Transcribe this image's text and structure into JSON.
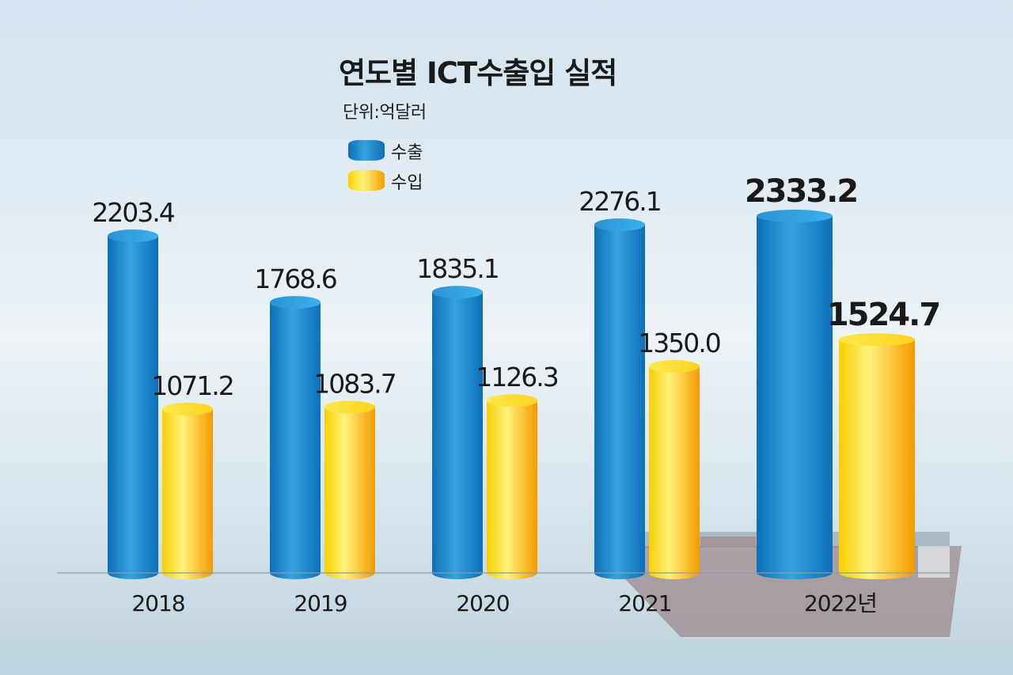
{
  "chart_data": {
    "type": "bar",
    "title": "연도별 ICT수출입 실적",
    "unit_label": "단위:억달러",
    "categories": [
      "2018",
      "2019",
      "2020",
      "2021",
      "2022년"
    ],
    "series": [
      {
        "name": "수출",
        "values": [
          2203.4,
          1768.6,
          1835.1,
          2276.1,
          2333.2
        ]
      },
      {
        "name": "수입",
        "values": [
          1071.2,
          1083.7,
          1126.3,
          1350.0,
          1524.7
        ]
      }
    ],
    "value_labels": {
      "export": [
        "2203.4",
        "1768.6",
        "1835.1",
        "2276.1",
        "2333.2"
      ],
      "import": [
        "1071.2",
        "1083.7",
        "1126.3",
        "1350.0",
        "1524.7"
      ]
    },
    "ylim": [
      0,
      2400
    ],
    "legend_position": "top-center",
    "grid": false,
    "highlight_last": true
  },
  "colors": {
    "export_dark": "#0f6fb8",
    "export_light": "#35a3e0",
    "import_light": "#fff27a",
    "import_mid": "#f7d000",
    "import_dark": "#f59a00",
    "baseline": "#8a9aa6"
  }
}
